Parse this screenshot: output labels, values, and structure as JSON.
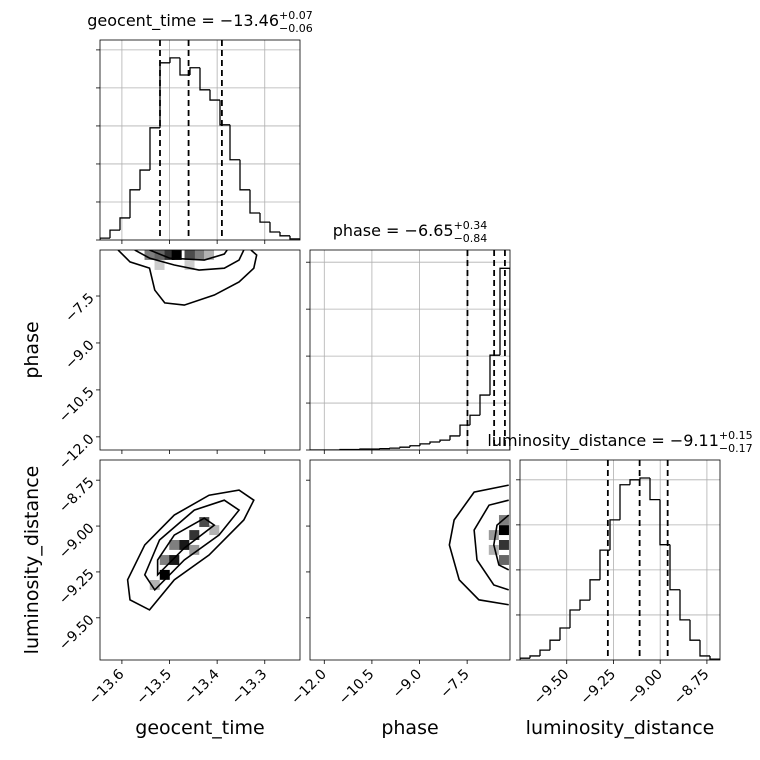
{
  "chart_data": [
    {
      "type": "histogram",
      "title": "geocent_time = −13.46",
      "title_sup": "+0.07",
      "title_sub": "−0.06",
      "bins": [
        -13.646,
        -13.625,
        -13.604,
        -13.583,
        -13.562,
        -13.541,
        -13.52,
        -13.499,
        -13.478,
        -13.457,
        -13.436,
        -13.415,
        -13.394,
        -13.373,
        -13.352,
        -13.331,
        -13.31,
        -13.289,
        -13.268,
        -13.247,
        -13.226
      ],
      "values": [
        0.05,
        0.26,
        0.58,
        1.32,
        1.84,
        2.95,
        4.66,
        4.79,
        4.34,
        4.53,
        3.95,
        3.68,
        3.03,
        2.11,
        1.32,
        0.71,
        0.47,
        0.21,
        0.11,
        0.03
      ],
      "quantiles": [
        -13.52,
        -13.46,
        -13.39
      ],
      "xlim": [
        -13.646,
        -13.226
      ],
      "xticks": [
        -13.6,
        -13.5,
        -13.4,
        -13.3
      ],
      "ylim": [
        0,
        5.26
      ],
      "yticks": [
        0,
        1,
        2,
        3,
        4,
        5
      ],
      "grid": true,
      "color": "#000000"
    },
    {
      "type": "contour",
      "xlim": [
        -13.646,
        -13.226
      ],
      "xticks": [
        -13.6,
        -13.5,
        -13.4,
        -13.3
      ],
      "ylim": [
        -12.42,
        -6.03
      ],
      "ylabel": "phase",
      "yticks": [
        {
          "value": -7.5,
          "label": "−7.5"
        },
        {
          "value": -9.0,
          "label": "−9.0"
        },
        {
          "value": -10.5,
          "label": "−10.5"
        },
        {
          "value": -12.0,
          "label": "−12.0"
        }
      ],
      "cell_size": [
        0.021,
        0.315
      ],
      "density": {
        "x": [
          -13.542,
          -13.521,
          -13.5,
          -13.485,
          -13.458,
          -13.438,
          -13.417,
          -13.521,
          -13.458
        ],
        "y": [
          -6.19,
          -6.19,
          -6.19,
          -6.19,
          -6.19,
          -6.19,
          -6.19,
          -6.51,
          -6.51
        ],
        "values": [
          0.5,
          0.6,
          0.8,
          1.0,
          0.7,
          0.5,
          0.3,
          0.2,
          0.2
        ]
      },
      "contours": [
        {
          "x": [
            -13.608,
            -13.583,
            -13.542,
            -13.531,
            -13.51,
            -13.469,
            -13.406,
            -13.354,
            -13.323,
            -13.317,
            -13.329
          ],
          "y": [
            -6.03,
            -6.41,
            -6.61,
            -7.31,
            -7.72,
            -7.79,
            -7.47,
            -7.05,
            -6.61,
            -6.19,
            -6.03
          ]
        },
        {
          "x": [
            -13.573,
            -13.542,
            -13.49,
            -13.438,
            -13.385,
            -13.354,
            -13.344
          ],
          "y": [
            -6.03,
            -6.29,
            -6.51,
            -6.67,
            -6.61,
            -6.35,
            -6.03
          ]
        },
        {
          "x": [
            -13.542,
            -13.5,
            -13.427,
            -13.385,
            -13.379
          ],
          "y": [
            -6.03,
            -6.29,
            -6.35,
            -6.16,
            -6.03
          ]
        }
      ],
      "closed": false,
      "color": "#000000"
    },
    {
      "type": "histogram",
      "title": "phase = −6.65",
      "title_sup": "+0.34",
      "title_sub": "−0.84",
      "bins": [
        -12.45,
        -12.135,
        -11.82,
        -11.505,
        -11.19,
        -10.875,
        -10.56,
        -10.245,
        -9.93,
        -9.615,
        -9.3,
        -8.985,
        -8.67,
        -8.355,
        -8.04,
        -7.725,
        -7.41,
        -7.095,
        -6.78,
        -6.465,
        -6.15
      ],
      "values": [
        0,
        0,
        0,
        0.01,
        0.01,
        0.02,
        0.02,
        0.03,
        0.04,
        0.06,
        0.09,
        0.13,
        0.17,
        0.21,
        0.3,
        0.53,
        0.74,
        1.17,
        2.02,
        3.87
      ],
      "quantiles": [
        -7.49,
        -6.65,
        -6.31
      ],
      "xlim": [
        -12.45,
        -6.15
      ],
      "xticks": [
        -12.0,
        -10.5,
        -9.0,
        -7.5
      ],
      "ylim": [
        0,
        4.26
      ],
      "yticks": [
        0,
        1,
        2,
        3,
        4
      ],
      "grid": true,
      "color": "#000000"
    },
    {
      "type": "contour",
      "xlabel": "geocent_time",
      "xlim": [
        -13.646,
        -13.226
      ],
      "xticks": [
        {
          "value": -13.6,
          "label": "−13.6"
        },
        {
          "value": -13.5,
          "label": "−13.5"
        },
        {
          "value": -13.4,
          "label": "−13.4"
        },
        {
          "value": -13.3,
          "label": "−13.3"
        }
      ],
      "ylim": [
        -9.73,
        -8.64
      ],
      "ylabel": "luminosity_distance",
      "yticks": [
        {
          "value": -8.75,
          "label": "−8.75"
        },
        {
          "value": -9.0,
          "label": "−9.00"
        },
        {
          "value": -9.25,
          "label": "−9.25"
        },
        {
          "value": -9.5,
          "label": "−9.50"
        }
      ],
      "cell_size": [
        0.021,
        0.054
      ],
      "density": {
        "x": [
          -13.51,
          -13.49,
          -13.469,
          -13.448,
          -13.427,
          -13.49,
          -13.51,
          -13.448,
          -13.406,
          -13.531
        ],
        "y": [
          -9.266,
          -9.185,
          -9.103,
          -9.049,
          -8.978,
          -9.103,
          -9.185,
          -9.13,
          -9.022,
          -9.321
        ],
        "values": [
          1.0,
          0.9,
          0.9,
          0.8,
          0.7,
          0.5,
          0.5,
          0.4,
          0.3,
          0.3
        ]
      },
      "contours": [
        {
          "x": [
            -13.588,
            -13.583,
            -13.542,
            -13.49,
            -13.417,
            -13.344,
            -13.323,
            -13.354,
            -13.417,
            -13.49,
            -13.552
          ],
          "y": [
            -9.293,
            -9.402,
            -9.457,
            -9.293,
            -9.158,
            -8.967,
            -8.859,
            -8.804,
            -8.832,
            -8.94,
            -9.103
          ]
        },
        {
          "x": [
            -13.552,
            -13.531,
            -13.469,
            -13.396,
            -13.354,
            -13.385,
            -13.448,
            -13.521
          ],
          "y": [
            -9.266,
            -9.348,
            -9.185,
            -9.049,
            -8.913,
            -8.859,
            -8.913,
            -9.076
          ]
        },
        {
          "x": [
            -13.525,
            -13.469,
            -13.406,
            -13.427,
            -13.49,
            -13.525
          ],
          "y": [
            -9.266,
            -9.12,
            -8.995,
            -8.957,
            -9.049,
            -9.185
          ]
        }
      ],
      "closed": true,
      "color": "#000000"
    },
    {
      "type": "contour",
      "xlabel": "phase",
      "xlim": [
        -12.45,
        -6.15
      ],
      "xticks": [
        {
          "value": -12.0,
          "label": "−12.0"
        },
        {
          "value": -10.5,
          "label": "−10.5"
        },
        {
          "value": -9.0,
          "label": "−9.0"
        },
        {
          "value": -7.5,
          "label": "−7.5"
        }
      ],
      "ylim": [
        -9.73,
        -8.64
      ],
      "yticks": [
        -8.75,
        -9.0,
        -9.25,
        -9.5
      ],
      "cell_size": [
        0.315,
        0.054
      ],
      "density": {
        "x": [
          -6.34,
          -6.34,
          -6.34,
          -6.34,
          -6.66,
          -6.66
        ],
        "y": [
          -9.022,
          -9.103,
          -8.967,
          -9.185,
          -9.049,
          -9.13
        ],
        "values": [
          1.0,
          0.8,
          0.5,
          0.6,
          0.4,
          0.3
        ]
      },
      "contours": [
        {
          "x": [
            -6.19,
            -7.28,
            -7.91,
            -8.06,
            -7.75,
            -7.13,
            -6.19
          ],
          "y": [
            -8.777,
            -8.815,
            -8.967,
            -9.103,
            -9.293,
            -9.402,
            -9.429
          ]
        },
        {
          "x": [
            -6.19,
            -6.81,
            -7.28,
            -7.19,
            -6.66,
            -6.19
          ],
          "y": [
            -8.859,
            -8.886,
            -9.022,
            -9.185,
            -9.321,
            -9.348
          ]
        },
        {
          "x": [
            -6.19,
            -6.56,
            -6.66,
            -6.5,
            -6.19
          ],
          "y": [
            -8.94,
            -8.995,
            -9.103,
            -9.212,
            -9.239
          ]
        }
      ],
      "closed": false,
      "color": "#000000"
    },
    {
      "type": "histogram",
      "title": "luminosity_distance = −9.11",
      "title_sup": "+0.15",
      "title_sub": "−0.17",
      "xlabel": "luminosity_distance",
      "bins": [
        -9.75,
        -9.6965,
        -9.643,
        -9.5895,
        -9.536,
        -9.4825,
        -9.429,
        -9.3755,
        -9.322,
        -9.2685,
        -9.215,
        -9.1615,
        -9.108,
        -9.0545,
        -9.001,
        -8.9475,
        -8.894,
        -8.8405,
        -8.787,
        -8.7335,
        -8.68
      ],
      "values": [
        0.04,
        0.09,
        0.22,
        0.44,
        0.71,
        1.11,
        1.33,
        1.78,
        2.44,
        3.11,
        3.89,
        4.0,
        4.04,
        3.56,
        2.56,
        1.56,
        0.89,
        0.44,
        0.09,
        0.02
      ],
      "quantiles": [
        -9.28,
        -9.11,
        -8.96
      ],
      "xlim": [
        -9.75,
        -8.68
      ],
      "xticks": [
        {
          "value": -9.5,
          "label": "−9.50"
        },
        {
          "value": -9.25,
          "label": "−9.25"
        },
        {
          "value": -9.0,
          "label": "−9.00"
        },
        {
          "value": -8.75,
          "label": "−8.75"
        }
      ],
      "ylim": [
        0,
        4.44
      ],
      "yticks": [
        0,
        1,
        2,
        3,
        4
      ],
      "grid": true,
      "color": "#000000"
    }
  ]
}
